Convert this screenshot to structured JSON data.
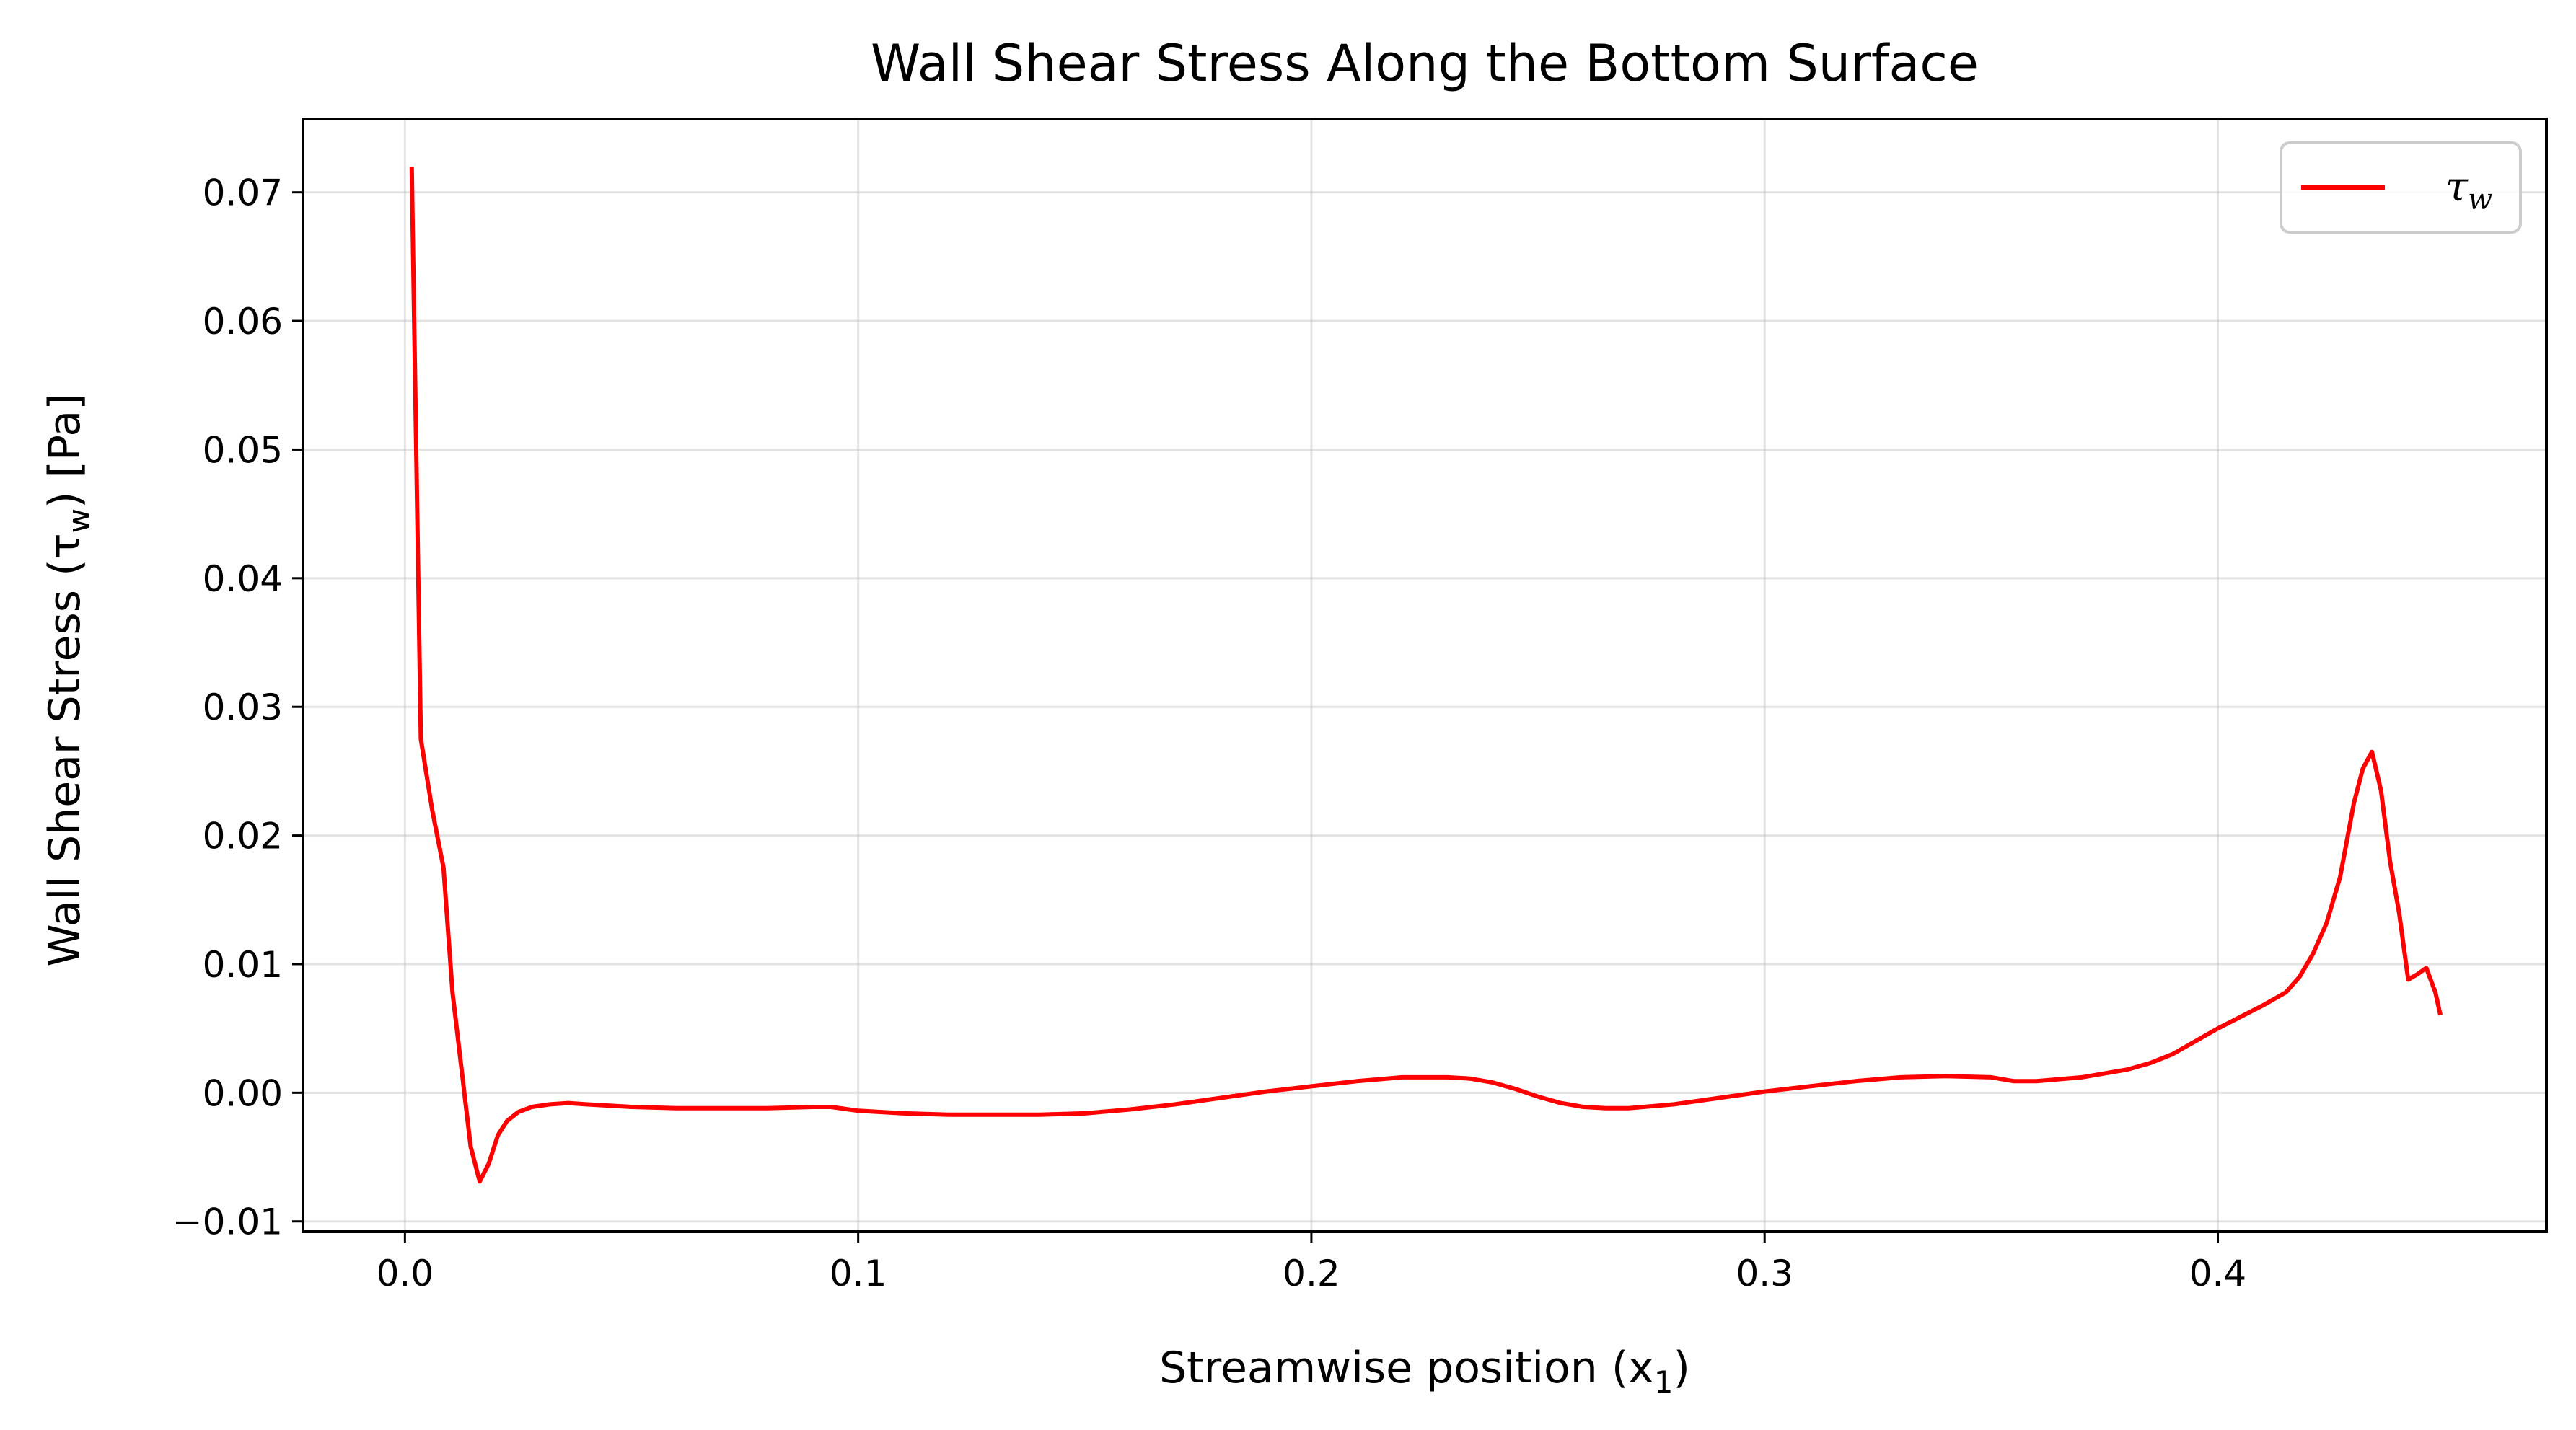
{
  "chart_data": {
    "type": "line",
    "title": "Wall Shear Stress Along the Bottom Surface",
    "xlabel": "Streamwise position (x",
    "xlabel_sub": "1",
    "xlabel_end": ")",
    "ylabel": "Wall Shear Stress (τ",
    "ylabel_sub": "w",
    "ylabel_end": ") [Pa]",
    "xlim": [
      -0.0225,
      0.4725
    ],
    "ylim": [
      -0.0108,
      0.0757
    ],
    "grid": true,
    "legend_position": "top-right",
    "x_ticks": [
      0.0,
      0.1,
      0.2,
      0.3,
      0.4
    ],
    "x_tick_labels": [
      "0.0",
      "0.1",
      "0.2",
      "0.3",
      "0.4"
    ],
    "y_ticks": [
      -0.01,
      0.0,
      0.01,
      0.02,
      0.03,
      0.04,
      0.05,
      0.06,
      0.07
    ],
    "y_tick_labels": [
      "−0.01",
      "0.00",
      "0.01",
      "0.02",
      "0.03",
      "0.04",
      "0.05",
      "0.06",
      "0.07"
    ],
    "series": [
      {
        "name": "τ",
        "name_sub": "w",
        "color": "#ff0000",
        "x": [
          0.0015,
          0.0035,
          0.006,
          0.0085,
          0.0105,
          0.0125,
          0.0145,
          0.0165,
          0.0185,
          0.0205,
          0.0225,
          0.025,
          0.028,
          0.032,
          0.036,
          0.04,
          0.05,
          0.06,
          0.07,
          0.08,
          0.09,
          0.094,
          0.1,
          0.11,
          0.12,
          0.13,
          0.14,
          0.15,
          0.16,
          0.17,
          0.18,
          0.19,
          0.2,
          0.21,
          0.22,
          0.23,
          0.235,
          0.24,
          0.245,
          0.25,
          0.255,
          0.26,
          0.265,
          0.27,
          0.28,
          0.29,
          0.3,
          0.31,
          0.32,
          0.33,
          0.34,
          0.35,
          0.355,
          0.36,
          0.37,
          0.38,
          0.385,
          0.39,
          0.4,
          0.41,
          0.415,
          0.418,
          0.421,
          0.424,
          0.427,
          0.43,
          0.432,
          0.434,
          0.436,
          0.438,
          0.44,
          0.442,
          0.444,
          0.446,
          0.448,
          0.449
        ],
        "y": [
          0.0718,
          0.0275,
          0.022,
          0.0175,
          0.0078,
          0.0018,
          -0.0042,
          -0.0069,
          -0.0055,
          -0.0033,
          -0.0022,
          -0.0015,
          -0.0011,
          -0.0009,
          -0.0008,
          -0.0009,
          -0.0011,
          -0.0012,
          -0.0012,
          -0.0012,
          -0.0011,
          -0.0011,
          -0.0014,
          -0.0016,
          -0.0017,
          -0.0017,
          -0.0017,
          -0.0016,
          -0.0013,
          -0.0009,
          -0.0004,
          0.0001,
          0.0005,
          0.0009,
          0.0012,
          0.0012,
          0.0011,
          0.0008,
          0.0003,
          -0.0003,
          -0.0008,
          -0.0011,
          -0.0012,
          -0.0012,
          -0.0009,
          -0.0004,
          0.0001,
          0.0005,
          0.0009,
          0.0012,
          0.0013,
          0.0012,
          0.0009,
          0.0009,
          0.0012,
          0.0018,
          0.0023,
          0.003,
          0.005,
          0.0068,
          0.0078,
          0.009,
          0.0108,
          0.0132,
          0.0168,
          0.0225,
          0.0252,
          0.0265,
          0.0235,
          0.018,
          0.014,
          0.0088,
          0.0092,
          0.0097,
          0.0078,
          0.0062
        ]
      }
    ]
  }
}
